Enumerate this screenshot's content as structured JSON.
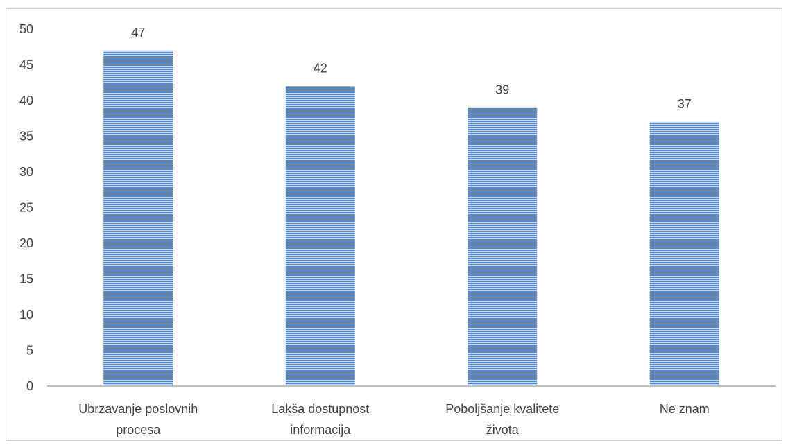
{
  "chart_data": {
    "type": "bar",
    "categories": [
      [
        "Ubrzavanje poslovnih",
        "procesa"
      ],
      [
        "Lakša dostupnost",
        "informacija"
      ],
      [
        "Poboljšanje kvalitete",
        "života"
      ],
      [
        "Ne znam"
      ]
    ],
    "values": [
      47,
      42,
      39,
      37
    ],
    "data_labels": [
      "47",
      "42",
      "39",
      "37"
    ],
    "y_ticks": [
      "0",
      "5",
      "10",
      "15",
      "20",
      "25",
      "30",
      "35",
      "40",
      "45",
      "50"
    ],
    "ylim": [
      0,
      50
    ],
    "title": "",
    "xlabel": "",
    "ylabel": "",
    "grid": false,
    "legend": "none",
    "bar_fill": "horizontal-stripes",
    "colors": {
      "bar_stripe": "#5b86c5",
      "bar_gap": "#c9d8ee",
      "axis": "#bfbfbf",
      "text": "#404040"
    }
  }
}
